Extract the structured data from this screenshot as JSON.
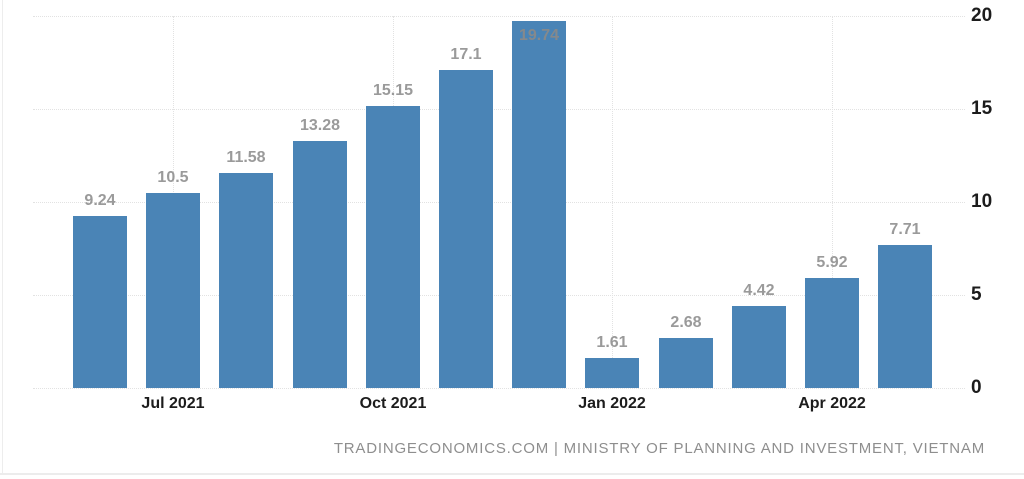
{
  "attribution": {
    "text": "TRADINGECONOMICS.COM | MINISTRY OF PLANNING AND INVESTMENT, VIETNAM",
    "color": "#8e8e8e"
  },
  "chart_data": {
    "type": "bar",
    "values": [
      9.24,
      10.5,
      11.58,
      13.28,
      15.15,
      17.1,
      19.74,
      1.61,
      2.68,
      4.42,
      5.92,
      7.71
    ],
    "bar_value_labels": [
      "9.24",
      "10.5",
      "11.58",
      "13.28",
      "15.15",
      "17.1",
      "19.74",
      "1.61",
      "2.68",
      "4.42",
      "5.92",
      "7.71"
    ],
    "x_ticks": [
      {
        "bar_index": 1,
        "label": "Jul 2021"
      },
      {
        "bar_index": 4,
        "label": "Oct 2021"
      },
      {
        "bar_index": 7,
        "label": "Jan 2022"
      },
      {
        "bar_index": 10,
        "label": "Apr 2022"
      }
    ],
    "y_ticks": [
      0,
      5,
      10,
      15,
      20
    ],
    "y_tick_labels": [
      "0",
      "5",
      "10",
      "15",
      "20"
    ],
    "ylim": [
      0,
      20
    ],
    "grid": true,
    "legend": "none",
    "title": "",
    "xlabel": "",
    "ylabel": "",
    "colors": {
      "bar": "#4a84b6",
      "value_label": "#9a9a9a",
      "value_label_inside": "#85898c",
      "axis_label": "#1c1c1c",
      "gridline": "#e2e2e2"
    }
  }
}
